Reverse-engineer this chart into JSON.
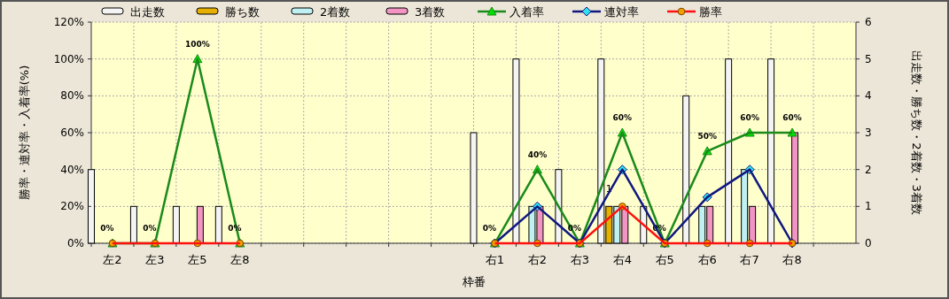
{
  "chart_data": {
    "type": "bar",
    "xlabel": "枠番",
    "ylabel": "勝率・連対率・入着率(%)",
    "y2label": "出走数・勝ち数・2着数・3着数",
    "categories": [
      "左2",
      "左3",
      "左5",
      "左8",
      null,
      null,
      null,
      null,
      null,
      "右1",
      "右2",
      "右3",
      "右4",
      "右5",
      "右6",
      "右7",
      "右8",
      null
    ],
    "ylim": [
      0,
      120
    ],
    "yticks": [
      {
        "value": 0,
        "label": "0%"
      },
      {
        "value": 20,
        "label": "20%"
      },
      {
        "value": 40,
        "label": "40%"
      },
      {
        "value": 60,
        "label": "60%"
      },
      {
        "value": 80,
        "label": "80%"
      },
      {
        "value": 100,
        "label": "100%"
      },
      {
        "value": 120,
        "label": "120%"
      }
    ],
    "y2lim": [
      0,
      6
    ],
    "y2ticks": [
      0,
      1,
      2,
      3,
      4,
      5,
      6
    ],
    "grid": true,
    "legend": "top",
    "series": [
      {
        "name": "出走数",
        "axis": "y2",
        "color": "#f4f4f4",
        "values": [
          2,
          1,
          1,
          1,
          null,
          null,
          null,
          null,
          null,
          3,
          5,
          2,
          5,
          1,
          4,
          5,
          5,
          null
        ]
      },
      {
        "name": "勝ち数",
        "axis": "y2",
        "color": "#e6b000",
        "values": [
          0,
          0,
          0,
          0,
          null,
          null,
          null,
          null,
          null,
          0,
          0,
          0,
          1,
          0,
          0,
          0,
          0,
          null
        ],
        "value_labels": [
          null,
          null,
          null,
          null,
          null,
          null,
          null,
          null,
          null,
          null,
          null,
          null,
          "1",
          null,
          null,
          null,
          null,
          null
        ]
      },
      {
        "name": "2着数",
        "axis": "y2",
        "color": "#bff0f2",
        "values": [
          0,
          0,
          0,
          0,
          null,
          null,
          null,
          null,
          null,
          0,
          1,
          0,
          1,
          0,
          1,
          2,
          0,
          null
        ]
      },
      {
        "name": "3着数",
        "axis": "y2",
        "color": "#f294c4",
        "values": [
          0,
          0,
          1,
          0,
          null,
          null,
          null,
          null,
          null,
          0,
          1,
          0,
          1,
          0,
          1,
          1,
          3,
          null
        ]
      },
      {
        "name": "入着率",
        "type": "line",
        "color": "#1a8a1a",
        "marker": "triangle",
        "values": [
          0,
          0,
          100,
          0,
          null,
          null,
          null,
          null,
          null,
          0,
          40,
          0,
          60,
          0,
          50,
          60,
          60,
          null
        ],
        "value_labels": [
          "0%",
          "0%",
          "100%",
          "0%",
          null,
          null,
          null,
          null,
          null,
          "0%",
          "40%",
          "0%",
          "60%",
          "0%",
          "50%",
          "60%",
          "60%",
          null
        ]
      },
      {
        "name": "連対率",
        "type": "line",
        "color": "#101880",
        "marker": "diamond",
        "values": [
          null,
          null,
          null,
          null,
          null,
          null,
          null,
          null,
          null,
          0,
          20,
          0,
          40,
          0,
          25,
          40,
          0,
          null
        ]
      },
      {
        "name": "勝率",
        "type": "line",
        "color": "#ff1010",
        "marker": "circle",
        "values": [
          0,
          0,
          0,
          0,
          null,
          null,
          null,
          null,
          null,
          0,
          0,
          0,
          20,
          0,
          0,
          0,
          0,
          null
        ]
      }
    ]
  }
}
